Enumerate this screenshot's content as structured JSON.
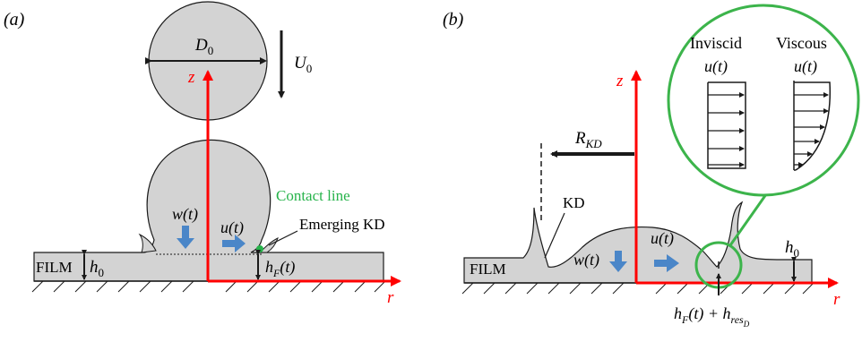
{
  "panel_a": {
    "label": "(a)",
    "diameter_label": "D",
    "diameter_sub": "0",
    "velocity_label": "U",
    "velocity_sub": "0",
    "z_axis": "z",
    "r_axis": "r",
    "contact_line": "Contact line",
    "emerging_kd": "Emerging KD",
    "w_label": "w(t)",
    "u_label": "u(t)",
    "film_label": "FILM",
    "h0_label": "h",
    "h0_sub": "0",
    "hf_main": "h",
    "hf_sub": "F",
    "hf_tail": "(t)"
  },
  "panel_b": {
    "label": "(b)",
    "z_axis": "z",
    "r_axis": "r",
    "rkd_label": "R",
    "rkd_sub": "KD",
    "kd_label": "KD",
    "inviscid_label": "Inviscid",
    "viscous_label": "Viscous",
    "u_inviscid": "u(t)",
    "u_viscous": "u(t)",
    "w_label": "w(t)",
    "u_label": "u(t)",
    "film_label": "FILM",
    "h0_label": "h",
    "h0_sub": "0",
    "hf_main": "h",
    "hf_sub": "F",
    "hf_mid": "(t) + h",
    "hres_sub": "res",
    "hres_subsub": "D"
  },
  "colors": {
    "fluid": "#d3d3d3",
    "axis": "#ff0000",
    "contact": "#27b34b",
    "zoom_circle": "#3cb44b",
    "flow_arrow": "#4a86c8",
    "outline": "#1a1a1a"
  }
}
